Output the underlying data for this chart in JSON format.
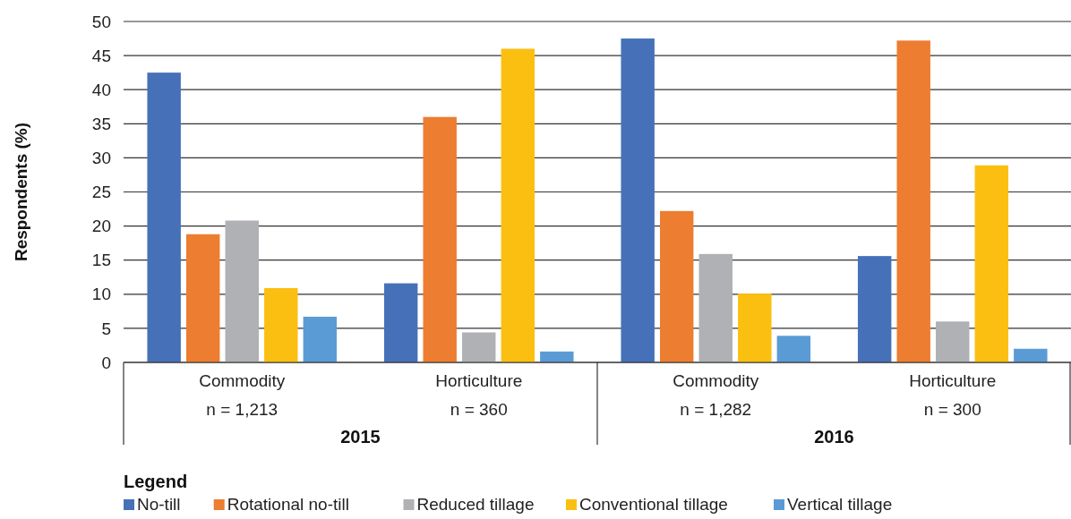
{
  "chart_data": {
    "type": "bar",
    "ylabel": "Respondents (%)",
    "legend_title": "Legend",
    "legend": "bottom",
    "grid": "y",
    "categories": [
      "Commodity\nn = 1,213",
      "Horticulture\nn = 360",
      "Commodity\nn = 1,282",
      "Horticulture\nn = 300"
    ],
    "annotations": [
      "2015",
      "2016"
    ],
    "ylim": [
      0,
      50
    ],
    "yticks": [
      0,
      5,
      10,
      15,
      20,
      25,
      30,
      35,
      40,
      45,
      50
    ],
    "series": [
      {
        "name": "No-till",
        "color": "#4671b8",
        "values": [
          42.5,
          11.6,
          47.5,
          15.6
        ]
      },
      {
        "name": "Rotational no-till",
        "color": "#ed7d31",
        "values": [
          18.8,
          36.0,
          22.2,
          47.2
        ]
      },
      {
        "name": "Reduced tillage",
        "color": "#b0b1b4",
        "values": [
          20.8,
          4.4,
          15.9,
          6.0
        ]
      },
      {
        "name": "Conventional tillage",
        "color": "#fbbf12",
        "values": [
          10.9,
          46.0,
          10.1,
          28.9
        ]
      },
      {
        "name": "Vertical tillage",
        "color": "#5b9bd5",
        "values": [
          6.7,
          1.6,
          3.9,
          2.0
        ]
      }
    ]
  }
}
